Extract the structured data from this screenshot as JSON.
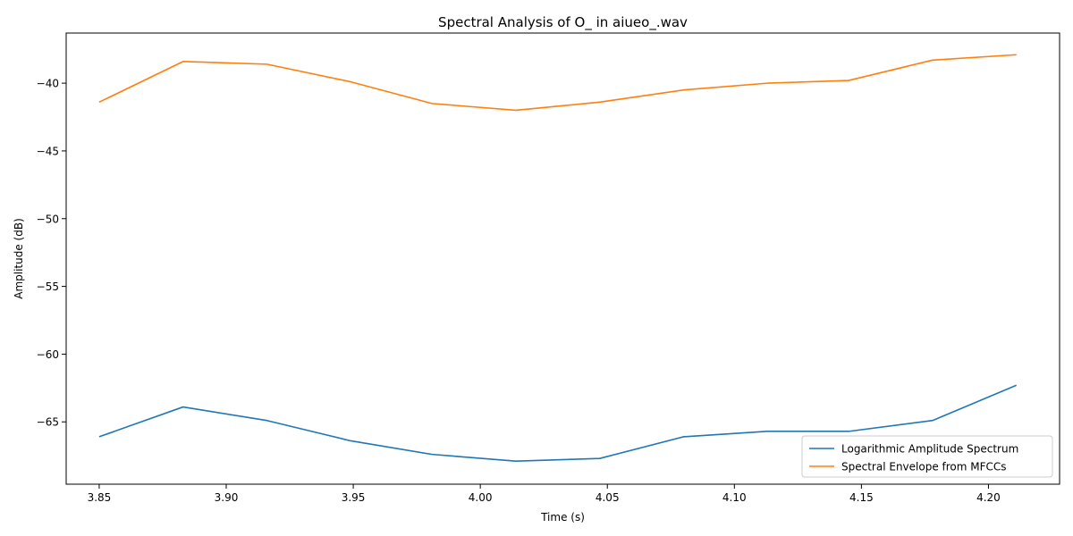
{
  "chart_data": {
    "type": "line",
    "title": "Spectral Analysis of O_ in aiueo_.wav",
    "xlabel": "Time (s)",
    "ylabel": "Amplitude (dB)",
    "xlim": [
      3.837,
      4.228
    ],
    "ylim": [
      -69.6,
      -36.3
    ],
    "x_ticks": [
      3.85,
      3.9,
      3.95,
      4.0,
      4.05,
      4.1,
      4.15,
      4.2
    ],
    "x_tick_labels": [
      "3.85",
      "3.90",
      "3.95",
      "4.00",
      "4.05",
      "4.10",
      "4.15",
      "4.20"
    ],
    "y_ticks": [
      -65,
      -60,
      -55,
      -50,
      -45,
      -40
    ],
    "y_tick_labels": [
      "−65",
      "−60",
      "−55",
      "−50",
      "−45",
      "−40"
    ],
    "grid": false,
    "legend_position": "lower-right",
    "x": [
      3.85,
      3.883,
      3.916,
      3.949,
      3.981,
      4.014,
      4.047,
      4.08,
      4.113,
      4.145,
      4.178,
      4.211
    ],
    "series": [
      {
        "name": "Logarithmic Amplitude Spectrum",
        "color": "#1f77b4",
        "values": [
          -66.1,
          -63.9,
          -64.9,
          -66.4,
          -67.4,
          -67.9,
          -67.7,
          -66.1,
          -65.7,
          -65.7,
          -64.9,
          -62.3
        ]
      },
      {
        "name": "Spectral Envelope from MFCCs",
        "color": "#ff7f0e",
        "values": [
          -41.4,
          -38.4,
          -38.6,
          -39.9,
          -41.5,
          -42.0,
          -41.4,
          -40.5,
          -40.0,
          -39.8,
          -38.3,
          -37.9
        ]
      }
    ]
  }
}
